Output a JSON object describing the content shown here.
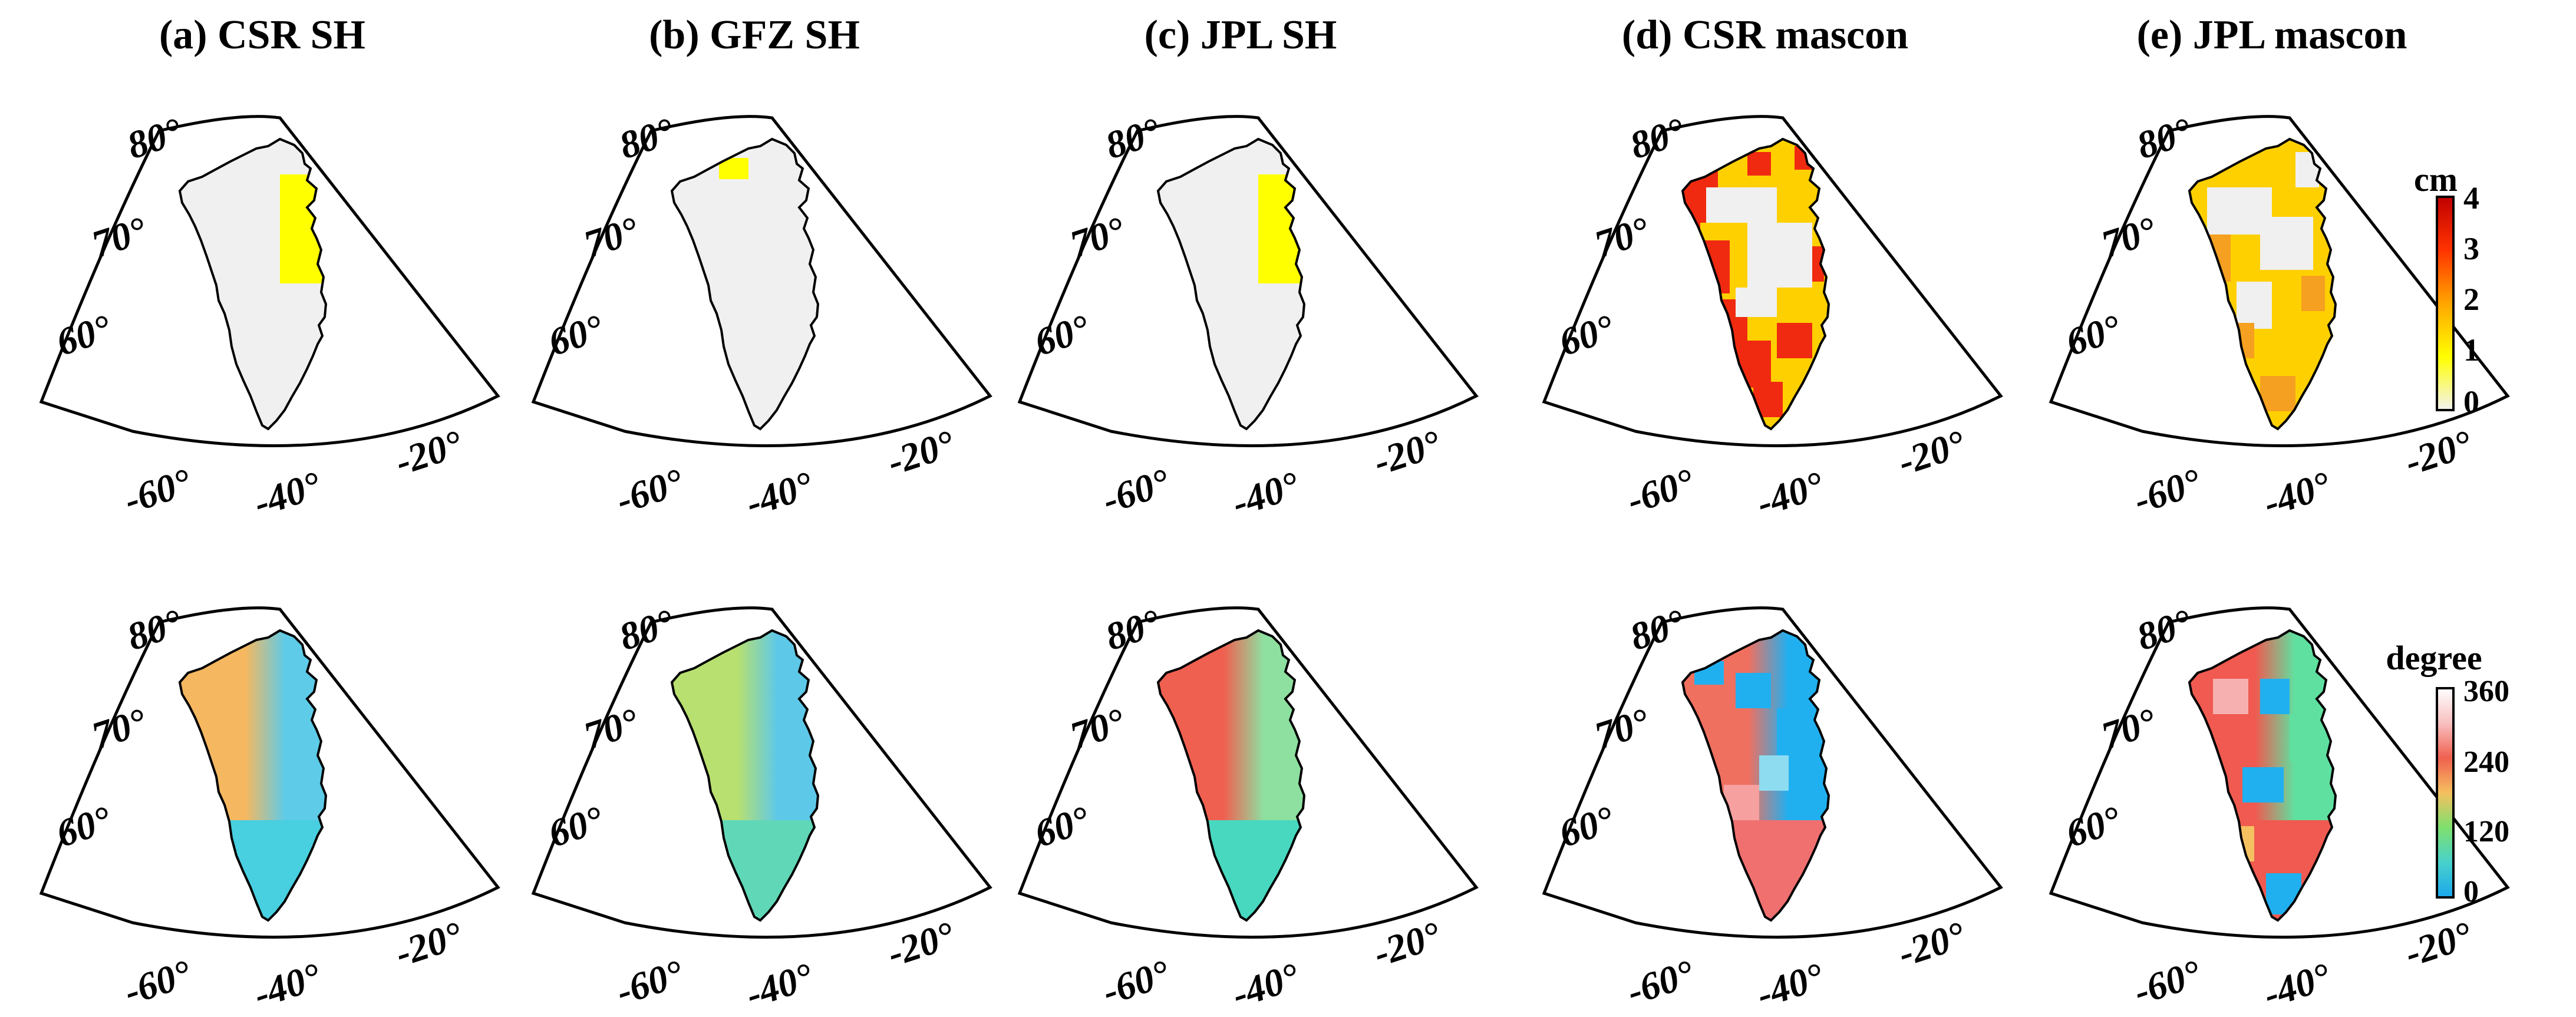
{
  "panels": [
    {
      "title": "(a) CSR SH",
      "product": "CSR SH"
    },
    {
      "title": "(b) GFZ SH",
      "product": "GFZ SH"
    },
    {
      "title": "(c) JPL SH",
      "product": "JPL SH"
    },
    {
      "title": "(d) CSR mascon",
      "product": "CSR mascon"
    },
    {
      "title": "(e) JPL mascon",
      "product": "JPL mascon"
    }
  ],
  "axes": {
    "lat_labels": [
      "80°",
      "70°",
      "60°"
    ],
    "lon_labels": [
      "-60°",
      "-40°",
      "-20°"
    ]
  },
  "colorbars": {
    "amplitude": {
      "unit": "cm",
      "ticks": [
        "4",
        "3",
        "2",
        "1",
        "0"
      ],
      "range": [
        0,
        4
      ],
      "colors": [
        "#f2f2f2",
        "#ffff00",
        "#ffa500",
        "#ff3300",
        "#c00000"
      ]
    },
    "phase": {
      "unit": "degree",
      "ticks": [
        "360",
        "240",
        "120",
        "0"
      ],
      "range": [
        0,
        360
      ],
      "colors": [
        "#1aa7ec",
        "#48d1cc",
        "#7ee06e",
        "#f5c060",
        "#f06050",
        "#f8c0c0",
        "#ffffff"
      ]
    }
  },
  "maps": {
    "amplitude": [
      {
        "background": "#f0f0f0",
        "highlight": "#ffff00",
        "pattern": "east coast strip ~1 cm"
      },
      {
        "background": "#f0f0f0",
        "highlight": "#ffff00",
        "pattern": "small northwest patch ~1 cm"
      },
      {
        "background": "#f0f0f0",
        "highlight": "#ffff00",
        "pattern": "east coast strip ~1 cm"
      },
      {
        "background": "#ffd000",
        "highlight": "#f02a10",
        "pattern": "coastal red/orange, grey interior"
      },
      {
        "background": "#ffd000",
        "highlight": "#f5a020",
        "pattern": "orange blocks, grey interior"
      }
    ],
    "phase": [
      {
        "west": "#f5b860",
        "east": "#5ecbe8",
        "south": "#48cfe0"
      },
      {
        "west": "#b8e070",
        "east": "#5ec8e8",
        "south": "#60d8b8"
      },
      {
        "west": "#f06050",
        "east": "#8ee0a0",
        "south": "#48d8c0"
      },
      {
        "west": "#f07060",
        "east": "#20b0f0",
        "south": "#f07070"
      },
      {
        "west": "#f05a50",
        "east": "#60e0a0",
        "south": "#f05a50"
      }
    ]
  }
}
